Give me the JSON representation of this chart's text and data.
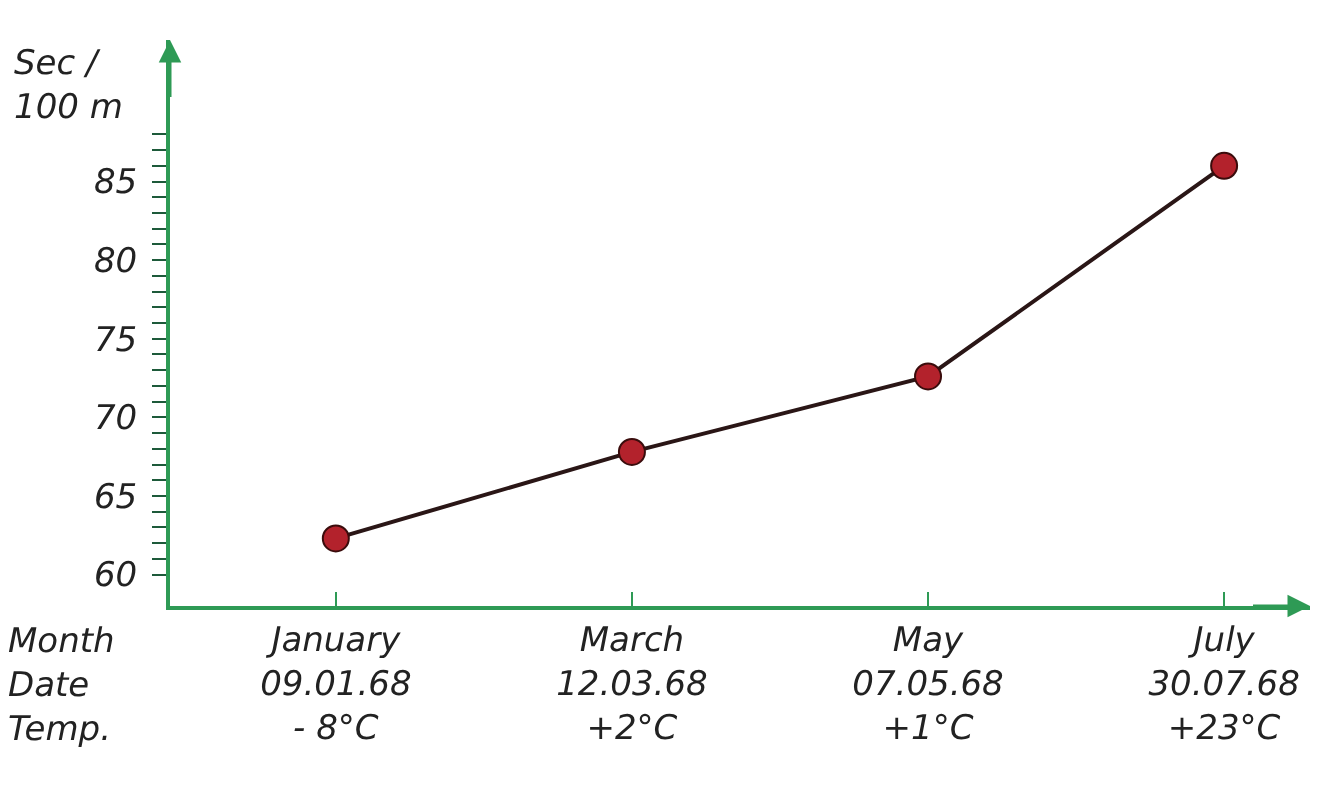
{
  "chart_data": {
    "type": "line",
    "ylabel": "Sec /\n100 m",
    "categories": [
      "January\n09.01.68\n- 8°C",
      "March\n12.03.68\n+2°C",
      "May\n07.05.68\n+1°C",
      "July\n30.07.68\n+23°C"
    ],
    "series": [
      {
        "color": "#b3222c",
        "values": [
          62.3,
          67.8,
          72.6,
          86.0
        ]
      }
    ],
    "ylim": [
      58,
      94
    ],
    "yticks": [
      60,
      {
        "value": 61,
        "label": null
      },
      {
        "value": 62,
        "label": null
      },
      {
        "value": 63,
        "label": null
      },
      {
        "value": 64,
        "label": null
      },
      65,
      {
        "value": 66,
        "label": null
      },
      {
        "value": 67,
        "label": null
      },
      {
        "value": 68,
        "label": null
      },
      {
        "value": 69,
        "label": null
      },
      70,
      {
        "value": 71,
        "label": null
      },
      {
        "value": 72,
        "label": null
      },
      {
        "value": 73,
        "label": null
      },
      {
        "value": 74,
        "label": null
      },
      75,
      {
        "value": 76,
        "label": null
      },
      {
        "value": 77,
        "label": null
      },
      {
        "value": 78,
        "label": null
      },
      {
        "value": 79,
        "label": null
      },
      80,
      {
        "value": 81,
        "label": null
      },
      {
        "value": 82,
        "label": null
      },
      {
        "value": 83,
        "label": null
      },
      {
        "value": 84,
        "label": null
      },
      85,
      {
        "value": 86,
        "label": null
      },
      {
        "value": 87,
        "label": null
      },
      {
        "value": 88,
        "label": null
      }
    ],
    "annotations": [
      "Month\nDate\nTemp."
    ],
    "marker": "circle",
    "line_style": "solid",
    "grid": false
  }
}
